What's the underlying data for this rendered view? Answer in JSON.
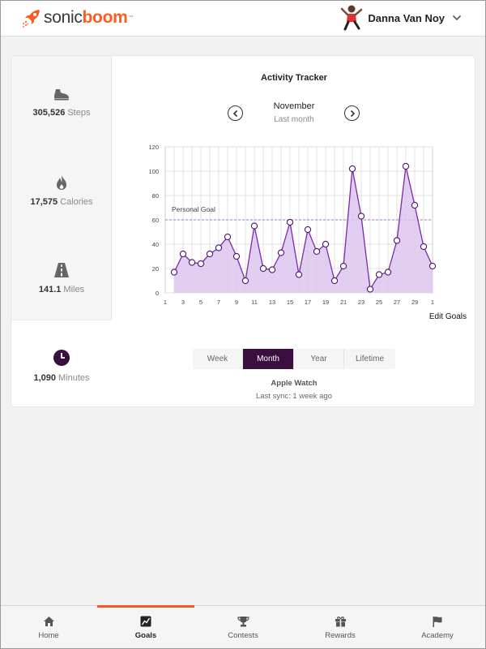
{
  "app": {
    "logo_sonic": "sonic",
    "logo_boom": "boom",
    "logo_tm": "™",
    "brand_color": "#ff5a1f",
    "accent_color": "#3a0f3f"
  },
  "user": {
    "name": "Danna Van Noy"
  },
  "stats": [
    {
      "icon": "shoe-icon",
      "value": "305,526",
      "unit": "Steps"
    },
    {
      "icon": "flame-icon",
      "value": "17,575",
      "unit": "Calories"
    },
    {
      "icon": "road-icon",
      "value": "141.1",
      "unit": "Miles"
    },
    {
      "icon": "clock-icon",
      "value": "1,090",
      "unit": "Minutes"
    }
  ],
  "tracker": {
    "title": "Activity Tracker",
    "month": "November",
    "month_sub": "Last month",
    "edit_goals": "Edit Goals"
  },
  "periods": {
    "items": [
      "Week",
      "Month",
      "Year",
      "Lifetime"
    ],
    "active": "Month"
  },
  "device": {
    "name": "Apple Watch",
    "sync": "Last sync: 1 week ago"
  },
  "chart_data": {
    "type": "area",
    "x_ticks": [
      "1",
      "3",
      "5",
      "7",
      "9",
      "11",
      "13",
      "15",
      "17",
      "19",
      "21",
      "23",
      "25",
      "27",
      "29",
      "1"
    ],
    "x": [
      2,
      3,
      4,
      5,
      6,
      7,
      8,
      9,
      10,
      11,
      12,
      13,
      14,
      15,
      16,
      17,
      18,
      19,
      20,
      21,
      22,
      23,
      24,
      25,
      26,
      27,
      28,
      29,
      30,
      31
    ],
    "values": [
      17,
      32,
      25,
      24,
      32,
      37,
      46,
      30,
      10,
      55,
      20,
      19,
      33,
      58,
      15,
      52,
      34,
      40,
      10,
      22,
      102,
      63,
      3,
      15,
      17,
      43,
      104,
      72,
      38,
      22
    ],
    "ylim": [
      0,
      120
    ],
    "y_ticks": [
      0,
      20,
      40,
      60,
      80,
      100,
      120
    ],
    "xlim": [
      1,
      31
    ],
    "grid": true,
    "goal": {
      "label": "Personal Goal",
      "value": 60
    },
    "fill_color": "#dcc6ee",
    "line_color": "#7a2aa8"
  },
  "nav": [
    {
      "label": "Home",
      "icon": "home-icon"
    },
    {
      "label": "Goals",
      "icon": "chart-icon"
    },
    {
      "label": "Contests",
      "icon": "trophy-icon"
    },
    {
      "label": "Rewards",
      "icon": "gift-icon"
    },
    {
      "label": "Academy",
      "icon": "flag-icon"
    }
  ],
  "nav_active": "Goals"
}
